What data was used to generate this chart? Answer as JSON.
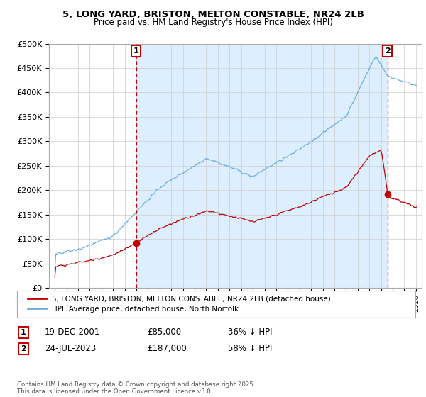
{
  "title_line1": "5, LONG YARD, BRISTON, MELTON CONSTABLE, NR24 2LB",
  "title_line2": "Price paid vs. HM Land Registry's House Price Index (HPI)",
  "ylim": [
    0,
    500000
  ],
  "yticks": [
    0,
    50000,
    100000,
    150000,
    200000,
    250000,
    300000,
    350000,
    400000,
    450000,
    500000
  ],
  "ytick_labels": [
    "£0",
    "£50K",
    "£100K",
    "£150K",
    "£200K",
    "£250K",
    "£300K",
    "£350K",
    "£400K",
    "£450K",
    "£500K"
  ],
  "xlim_start": 1994.5,
  "xlim_end": 2026.5,
  "hpi_color": "#6aaee0",
  "price_color": "#c00000",
  "shade_color": "#ddeeff",
  "sale1_date": 2001.97,
  "sale1_price": 85000,
  "sale2_date": 2023.56,
  "sale2_price": 187000,
  "legend_label1": "5, LONG YARD, BRISTON, MELTON CONSTABLE, NR24 2LB (detached house)",
  "legend_label2": "HPI: Average price, detached house, North Norfolk",
  "table_row1": [
    "1",
    "19-DEC-2001",
    "£85,000",
    "36% ↓ HPI"
  ],
  "table_row2": [
    "2",
    "24-JUL-2023",
    "£187,000",
    "58% ↓ HPI"
  ],
  "footnote": "Contains HM Land Registry data © Crown copyright and database right 2025.\nThis data is licensed under the Open Government Licence v3.0.",
  "background_color": "#ffffff",
  "grid_color": "#cccccc"
}
